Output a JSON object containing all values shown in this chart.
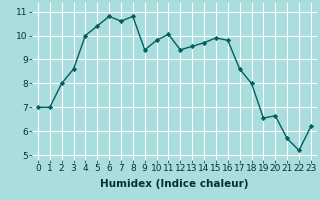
{
  "x": [
    0,
    1,
    2,
    3,
    4,
    5,
    6,
    7,
    8,
    9,
    10,
    11,
    12,
    13,
    14,
    15,
    16,
    17,
    18,
    19,
    20,
    21,
    22,
    23
  ],
  "y": [
    7.0,
    7.0,
    8.0,
    8.6,
    10.0,
    10.4,
    10.8,
    10.6,
    10.8,
    9.4,
    9.8,
    10.05,
    9.4,
    9.55,
    9.7,
    9.9,
    9.8,
    8.6,
    8.0,
    6.55,
    6.65,
    5.7,
    5.2,
    6.2
  ],
  "line_color": "#006060",
  "marker_color": "#006060",
  "bg_color": "#aadddd",
  "grid_color": "#ffffff",
  "xlabel": "Humidex (Indice chaleur)",
  "xlim": [
    -0.5,
    23.5
  ],
  "ylim": [
    4.8,
    11.4
  ],
  "yticks": [
    5,
    6,
    7,
    8,
    9,
    10,
    11
  ],
  "xticks": [
    0,
    1,
    2,
    3,
    4,
    5,
    6,
    7,
    8,
    9,
    10,
    11,
    12,
    13,
    14,
    15,
    16,
    17,
    18,
    19,
    20,
    21,
    22,
    23
  ],
  "xlabel_fontsize": 7.5,
  "tick_fontsize": 6.5
}
